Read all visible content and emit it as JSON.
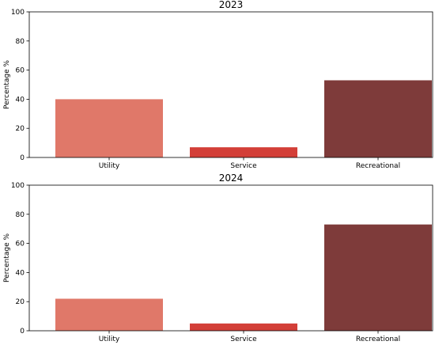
{
  "chart_data": [
    {
      "type": "bar",
      "title": "2023",
      "xlabel": "",
      "ylabel": "Percentage %",
      "ylim": [
        0,
        100
      ],
      "yticks": [
        0,
        20,
        40,
        60,
        80,
        100
      ],
      "categories": [
        "Utility",
        "Service",
        "Recreational"
      ],
      "values": [
        40,
        7,
        53
      ],
      "colors": [
        "#e07869",
        "#d33f38",
        "#7e3b3a"
      ],
      "grid": false
    },
    {
      "type": "bar",
      "title": "2024",
      "xlabel": "",
      "ylabel": "Percentage %",
      "ylim": [
        0,
        100
      ],
      "yticks": [
        0,
        20,
        40,
        60,
        80,
        100
      ],
      "categories": [
        "Utility",
        "Service",
        "Recreational"
      ],
      "values": [
        22,
        5,
        73
      ],
      "colors": [
        "#e07869",
        "#d33f38",
        "#7e3b3a"
      ],
      "grid": false
    }
  ]
}
